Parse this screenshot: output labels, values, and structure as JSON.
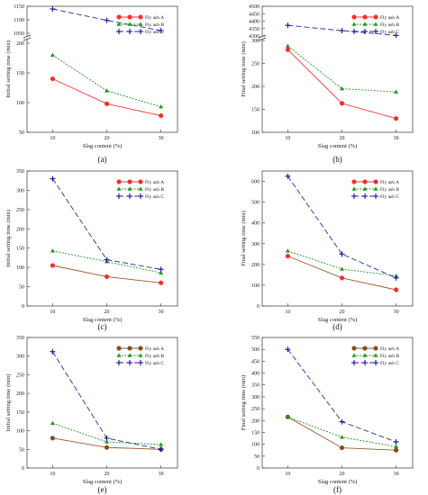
{
  "figure": {
    "x_axis_label": "Slag content (%)",
    "initial_label": "Initial setting time (min)",
    "final_label": "Final setting time (min)"
  },
  "chart_data": [
    {
      "panel": "(a)",
      "type": "line",
      "xlabel": "Slag content (%)",
      "ylabel": "Initial setting time (min)",
      "x": [
        10,
        20,
        30
      ],
      "y_ticks": [
        50,
        100,
        150,
        200,
        1050,
        1100,
        1150
      ],
      "axis_break": true,
      "legend_position": "top-right",
      "series": [
        {
          "name": "Fly ash A",
          "values": [
            140,
            98,
            78
          ],
          "color": "#ff3030",
          "dash": "solid",
          "marker": "circle",
          "marker_fill": "#ff2a2a"
        },
        {
          "name": "Fly ash B",
          "values": [
            180,
            120,
            93
          ],
          "color": "#1f9a1f",
          "dash": "dot",
          "marker": "triangle",
          "marker_fill": "#1f9a1f"
        },
        {
          "name": "Fly ash C",
          "values": [
            1140,
            1098,
            1060
          ],
          "color": "#2a2aaa",
          "dash": "dash",
          "marker": "plus",
          "marker_fill": "#1010a0"
        }
      ]
    },
    {
      "panel": "(b)",
      "type": "line",
      "xlabel": "Slag content (%)",
      "ylabel": "Final setting time (min)",
      "x": [
        10,
        20,
        30
      ],
      "y_ticks": [
        100,
        150,
        200,
        250,
        300,
        4300,
        4350,
        4400,
        4450,
        4500
      ],
      "axis_break": true,
      "legend_position": "top-right",
      "series": [
        {
          "name": "Fly ash A",
          "values": [
            280,
            163,
            130
          ],
          "color": "#ff3030",
          "dash": "solid",
          "marker": "circle",
          "marker_fill": "#ff2a2a"
        },
        {
          "name": "Fly ash B",
          "values": [
            288,
            195,
            188
          ],
          "color": "#1f9a1f",
          "dash": "dot",
          "marker": "triangle",
          "marker_fill": "#1f9a1f"
        },
        {
          "name": "Fly ash C",
          "values": [
            4372,
            4336,
            4304
          ],
          "color": "#2a2aaa",
          "dash": "dash",
          "marker": "plus",
          "marker_fill": "#1010a0"
        }
      ]
    },
    {
      "panel": "(c)",
      "type": "line",
      "xlabel": "Slag content (%)",
      "ylabel": "Initial setting time (min)",
      "x": [
        10,
        20,
        30
      ],
      "ylim": [
        0,
        350
      ],
      "y_ticks": [
        0,
        50,
        100,
        150,
        200,
        250,
        300,
        350
      ],
      "axis_break": false,
      "legend_position": "top-right",
      "series": [
        {
          "name": "Fly ash A",
          "values": [
            105,
            76,
            60
          ],
          "color": "#9b5a2a",
          "dash": "solid",
          "marker": "circle",
          "marker_fill": "#ff2a2a"
        },
        {
          "name": "Fly ash B",
          "values": [
            143,
            115,
            86
          ],
          "color": "#1f9a1f",
          "dash": "dot",
          "marker": "triangle",
          "marker_fill": "#1f9a1f"
        },
        {
          "name": "Fly ash C",
          "values": [
            330,
            120,
            95
          ],
          "color": "#2a2aaa",
          "dash": "dash",
          "marker": "plus",
          "marker_fill": "#1010a0"
        }
      ]
    },
    {
      "panel": "(d)",
      "type": "line",
      "xlabel": "Slag content (%)",
      "ylabel": "Final setting time (min)",
      "x": [
        10,
        20,
        30
      ],
      "ylim": [
        0,
        650
      ],
      "y_ticks": [
        0,
        100,
        200,
        300,
        400,
        500,
        600
      ],
      "axis_break": false,
      "legend_position": "top-right",
      "series": [
        {
          "name": "Fly ash A",
          "values": [
            240,
            135,
            78
          ],
          "color": "#9b5a2a",
          "dash": "solid",
          "marker": "circle",
          "marker_fill": "#ff2a2a"
        },
        {
          "name": "Fly ash B",
          "values": [
            265,
            178,
            145
          ],
          "color": "#1f9a1f",
          "dash": "dot",
          "marker": "triangle",
          "marker_fill": "#1f9a1f"
        },
        {
          "name": "Fly ash C",
          "values": [
            625,
            250,
            135
          ],
          "color": "#2a2aaa",
          "dash": "dash",
          "marker": "plus",
          "marker_fill": "#1010a0"
        }
      ]
    },
    {
      "panel": "(e)",
      "type": "line",
      "xlabel": "Slag content (%)",
      "ylabel": "Initial setting time (min)",
      "x": [
        10,
        20,
        30
      ],
      "ylim": [
        0,
        350
      ],
      "y_ticks": [
        0,
        50,
        100,
        150,
        200,
        250,
        300,
        350
      ],
      "axis_break": false,
      "legend_position": "top-right",
      "series": [
        {
          "name": "Fly ash A",
          "values": [
            80,
            55,
            50
          ],
          "color": "#9b5a2a",
          "dash": "solid",
          "marker": "circle",
          "marker_fill": "#8a4a1a"
        },
        {
          "name": "Fly ash B",
          "values": [
            120,
            70,
            63
          ],
          "color": "#1f9a1f",
          "dash": "dot",
          "marker": "triangle",
          "marker_fill": "#1f9a1f"
        },
        {
          "name": "Fly ash C",
          "values": [
            312,
            80,
            50
          ],
          "color": "#2a2aaa",
          "dash": "dash",
          "marker": "plus",
          "marker_fill": "#1010a0"
        }
      ]
    },
    {
      "panel": "(f)",
      "type": "line",
      "xlabel": "Slag content (%)",
      "ylabel": "Final setting time (min)",
      "x": [
        10,
        20,
        30
      ],
      "ylim": [
        0,
        550
      ],
      "y_ticks": [
        0,
        50,
        100,
        150,
        200,
        250,
        300,
        350,
        400,
        450,
        500,
        550
      ],
      "axis_break": false,
      "legend_position": "top-right",
      "series": [
        {
          "name": "Fly ash A",
          "values": [
            215,
            85,
            75
          ],
          "color": "#9b5a2a",
          "dash": "solid",
          "marker": "circle",
          "marker_fill": "#8a4a1a"
        },
        {
          "name": "Fly ash B",
          "values": [
            215,
            130,
            90
          ],
          "color": "#1f9a1f",
          "dash": "dot",
          "marker": "triangle",
          "marker_fill": "#1f9a1f"
        },
        {
          "name": "Fly ash C",
          "values": [
            500,
            195,
            110
          ],
          "color": "#2a2aaa",
          "dash": "dash",
          "marker": "plus",
          "marker_fill": "#1010a0"
        }
      ]
    }
  ]
}
